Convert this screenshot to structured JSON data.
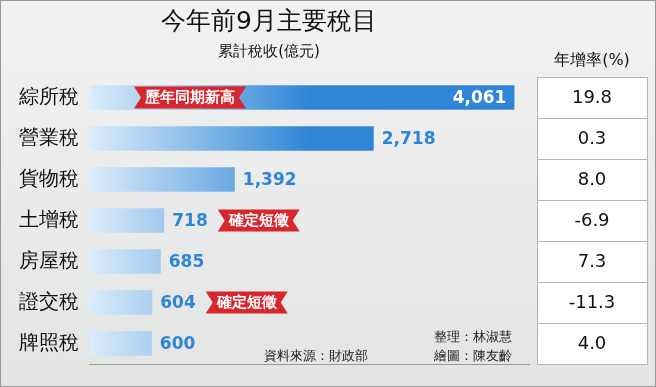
{
  "chart_data": {
    "type": "bar",
    "orientation": "horizontal",
    "title": "今年前9月主要稅目",
    "subtitle": "累計稅收(億元)",
    "categories": [
      "綜所稅",
      "營業稅",
      "貨物稅",
      "土增稅",
      "房屋稅",
      "證交稅",
      "牌照稅"
    ],
    "values": [
      4061,
      2718,
      1392,
      718,
      685,
      604,
      600
    ],
    "value_labels": [
      "4,061",
      "2,718",
      "1,392",
      "718",
      "685",
      "604",
      "600"
    ],
    "data_labels": true,
    "color": "#2f86d6",
    "xlim": [
      0,
      4200
    ],
    "xticks": [],
    "tick_labels": "y",
    "grid": false,
    "growth": {
      "title": "年增率(%)",
      "values": [
        19.8,
        0.3,
        8.0,
        -6.9,
        7.3,
        -11.3,
        4.0
      ],
      "value_labels": [
        "19.8",
        "0.3",
        "8.0",
        "-6.9",
        "7.3",
        "-11.3",
        "4.0"
      ]
    },
    "annotations": [
      {
        "category": "綜所稅",
        "text": "歷年同期新高"
      },
      {
        "category": "土增稅",
        "text": "確定短徵"
      },
      {
        "category": "證交稅",
        "text": "確定短徵"
      }
    ],
    "notes": [
      "資料來源：財政部",
      "整理：林淑慧",
      "繪圖：陳友齡"
    ]
  }
}
